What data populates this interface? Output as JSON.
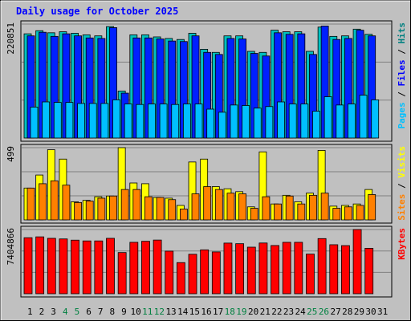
{
  "chart_data": {
    "type": "bar",
    "title": "Daily usage for October 2025",
    "x": [
      "1",
      "2",
      "3",
      "4",
      "5",
      "6",
      "7",
      "8",
      "9",
      "10",
      "11",
      "12",
      "13",
      "14",
      "15",
      "16",
      "17",
      "18",
      "19",
      "20",
      "21",
      "22",
      "23",
      "24",
      "25",
      "26",
      "27",
      "28",
      "29",
      "30",
      "31"
    ],
    "weekend_days": [
      "4",
      "5",
      "11",
      "12",
      "18",
      "19",
      "25",
      "26"
    ],
    "panels": [
      {
        "id": "hits",
        "ymax_label": "220851",
        "ymax": 220851,
        "series_labels": [
          {
            "text": "Pages",
            "color": "#00c0ff"
          },
          {
            "text": " / ",
            "color": "#000000"
          },
          {
            "text": "Files",
            "color": "#0000ff"
          },
          {
            "text": " / ",
            "color": "#000000"
          },
          {
            "text": "Hits",
            "color": "#008080"
          }
        ],
        "series": [
          {
            "name": "Hits",
            "color": "#00c0c0",
            "values": [
              202000,
              208000,
              204000,
              206000,
              203000,
              200000,
              198000,
              216000,
              91000,
              200000,
              200000,
              196000,
              193000,
              191000,
              203000,
              172000,
              166000,
              198000,
              198000,
              168000,
              166000,
              209000,
              206000,
              206000,
              168000,
              215000,
              197000,
              198000,
              211000,
              201000,
              0
            ]
          },
          {
            "name": "Files",
            "color": "#0020ff",
            "values": [
              198000,
              205000,
              197000,
              202000,
              198000,
              194000,
              193000,
              214000,
              87000,
              194000,
              194000,
              192000,
              188000,
              187000,
              198000,
              166000,
              162000,
              193000,
              192000,
              164000,
              159000,
              204000,
              201000,
              202000,
              162000,
              217000,
              191000,
              193000,
              209000,
              198000,
              0
            ]
          },
          {
            "name": "Pages",
            "color": "#00c0ff",
            "values": [
              60000,
              70000,
              69000,
              69000,
              67000,
              67000,
              67000,
              74000,
              66000,
              65000,
              66000,
              66000,
              65000,
              66000,
              66000,
              56000,
              50000,
              64000,
              63000,
              58000,
              61000,
              70000,
              66000,
              66000,
              52000,
              80000,
              64000,
              66000,
              83000,
              74000,
              0
            ]
          }
        ]
      },
      {
        "id": "visits",
        "ymax_label": "499",
        "ymax": 499,
        "series_labels": [
          {
            "text": "Sites",
            "color": "#ff8000"
          },
          {
            "text": " / ",
            "color": "#000000"
          },
          {
            "text": "Visits",
            "color": "#ffff00"
          }
        ],
        "series": [
          {
            "name": "Visits",
            "color": "#ffff00",
            "values": [
              220,
              310,
              485,
              420,
              125,
              135,
              160,
              165,
              499,
              255,
              250,
              155,
              150,
              100,
              400,
              420,
              230,
              215,
              195,
              90,
              470,
              110,
              170,
              125,
              185,
              480,
              95,
              100,
              110,
              210,
              0
            ]
          },
          {
            "name": "Sites",
            "color": "#ff8000",
            "values": [
              220,
              250,
              270,
              240,
              120,
              130,
              150,
              165,
              210,
              210,
              160,
              155,
              140,
              75,
              180,
              230,
              210,
              185,
              180,
              80,
              160,
              110,
              165,
              110,
              170,
              185,
              80,
              90,
              100,
              175,
              0
            ]
          }
        ]
      },
      {
        "id": "kbytes",
        "ymax_label": "7404866",
        "ymax": 7404866,
        "series_labels": [
          {
            "text": "KBytes",
            "color": "#ff0000"
          }
        ],
        "series": [
          {
            "name": "KBytes",
            "color": "#ff0000",
            "values": [
              6460000,
              6560000,
              6390000,
              6320000,
              6180000,
              6090000,
              6090000,
              6390000,
              4750000,
              5930000,
              6050000,
              6190000,
              4910000,
              3590000,
              4550000,
              5060000,
              4820000,
              5840000,
              5770000,
              5370000,
              5850000,
              5560000,
              5930000,
              5930000,
              4570000,
              6360000,
              5650000,
              5550000,
              7404866,
              5240000,
              0
            ]
          }
        ]
      }
    ]
  }
}
